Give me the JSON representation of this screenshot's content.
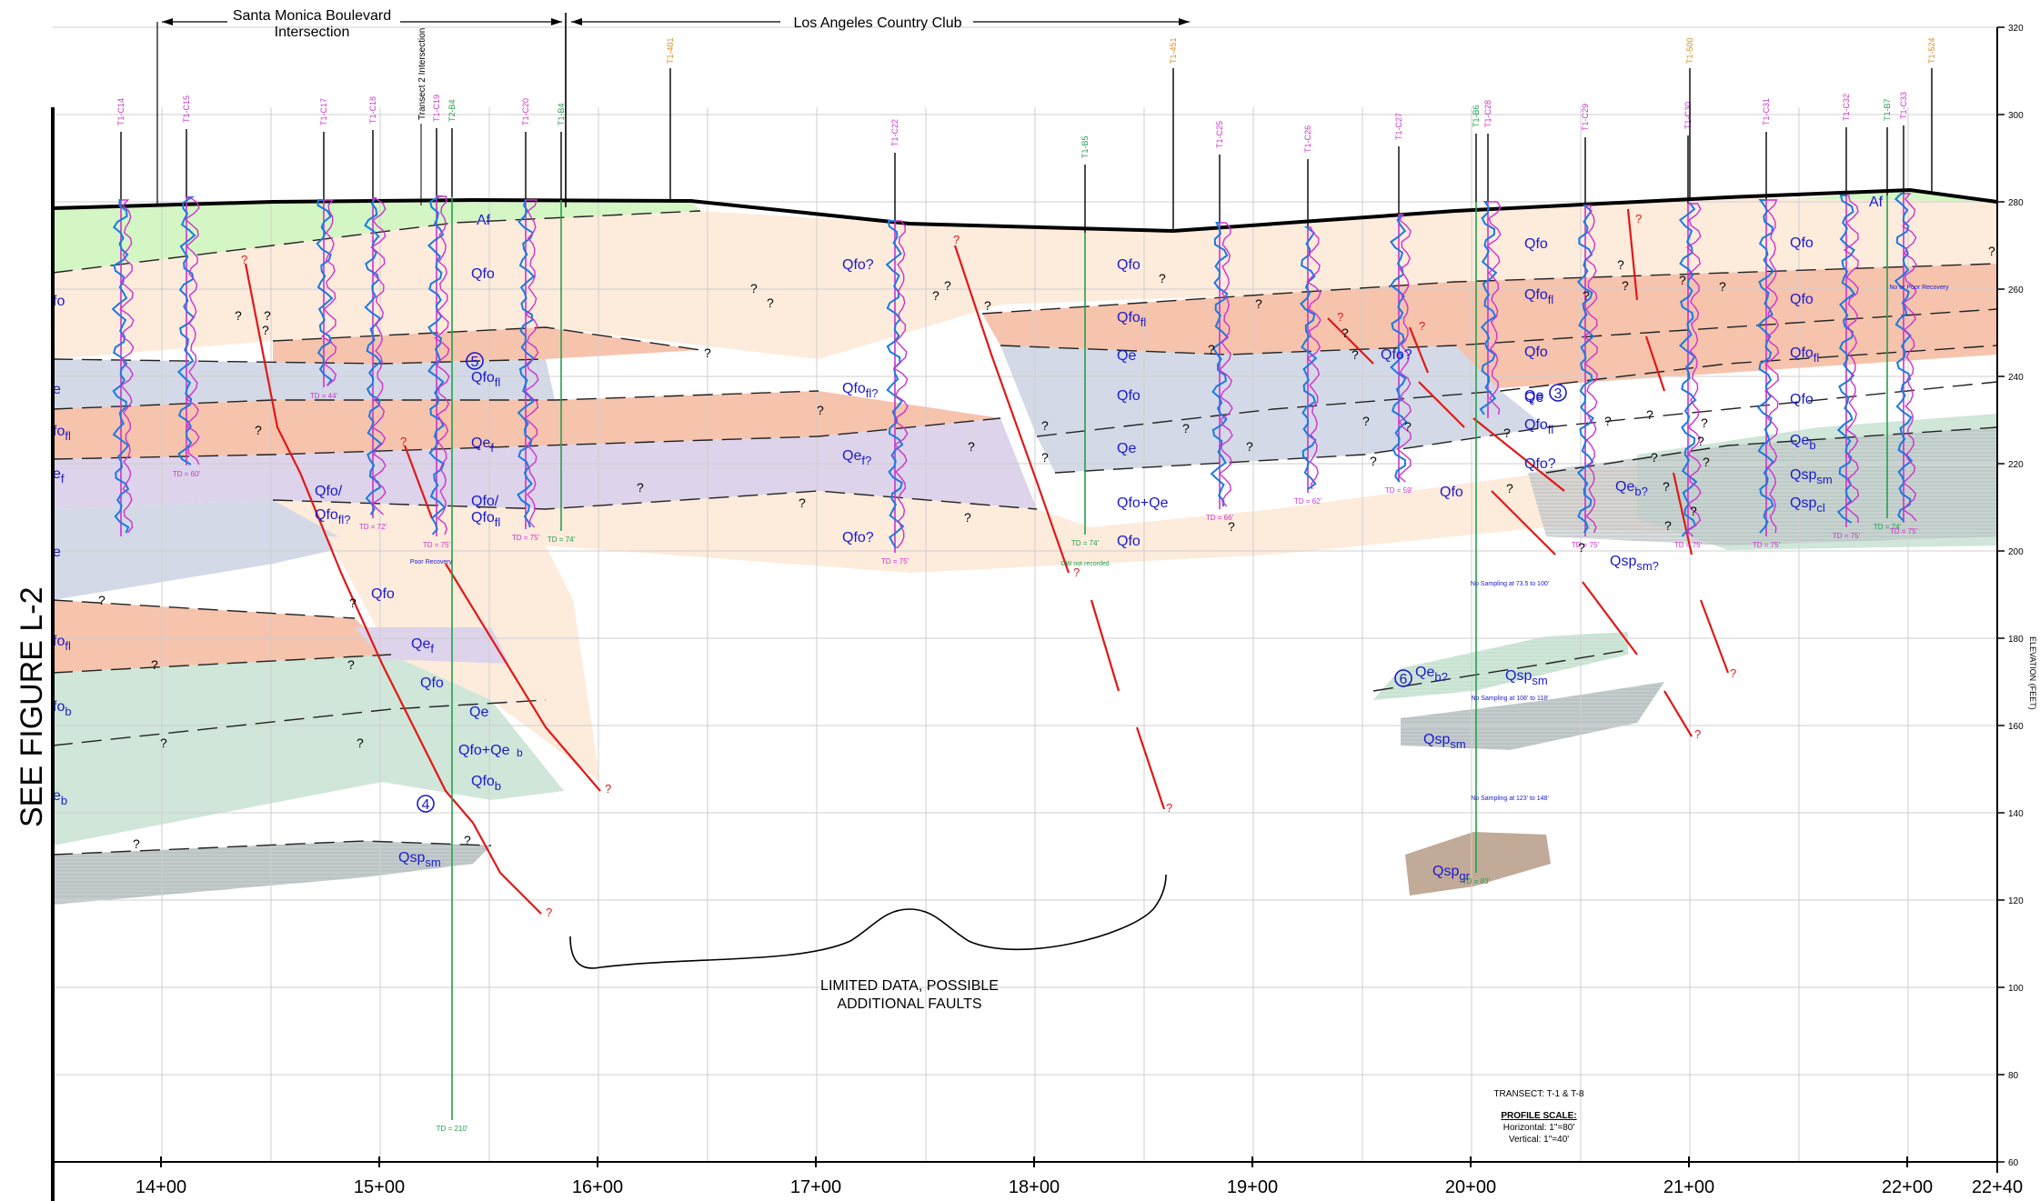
{
  "header": {
    "smb_title_line1": "Santa Monica Boulevard",
    "smb_title_line2": "Intersection",
    "lacc_title": "Los Angeles Country Club",
    "transect2_label": "Transect 2 Intersection"
  },
  "side_label": "SEE FIGURE L-2",
  "annotation": {
    "line1": "LIMITED DATA, POSSIBLE",
    "line2": "ADDITIONAL FAULTS"
  },
  "profile_info": {
    "transect": "TRANSECT: T-1 & T-8",
    "scale_title": "PROFILE SCALE:",
    "horizontal": "Horizontal: 1\"=80'",
    "vertical": "Vertical: 1\"=40'"
  },
  "colors": {
    "boring_cpt": "#cc33cc",
    "boring_b": "#22a04a",
    "reference": "#e08a1e",
    "unit_label": "#1a1acc",
    "fault": "#e01818",
    "Af": "#d4f5c4",
    "Qfo": "#fdebdc",
    "Qfo_fl": "#f6c3ad",
    "Qe": "#d3d9e6",
    "Qe_f": "#ddd3ea",
    "Qe_b": "#cfe6d8",
    "Qsp_sm": "#c4cbcd",
    "Qsp_gr": "#c2aa98"
  },
  "x_axis": {
    "stations": [
      "14+00",
      "15+00",
      "16+00",
      "17+00",
      "18+00",
      "19+00",
      "20+00",
      "21+00",
      "22+00",
      "22+40"
    ]
  },
  "y_axis": {
    "elevations": [
      "320",
      "300",
      "280",
      "260",
      "240",
      "220",
      "200",
      "180",
      "160",
      "140",
      "120",
      "100",
      "80",
      "60"
    ],
    "label": "ELEVATION (FEET)"
  },
  "borings": [
    {
      "label": "T1-C14",
      "type": "cpt",
      "td": ""
    },
    {
      "label": "T1-C15",
      "type": "cpt",
      "td": "TD = 60'"
    },
    {
      "label": "T1-C17",
      "type": "cpt",
      "td": "TD = 44'"
    },
    {
      "label": "T1-C18",
      "type": "cpt",
      "td": "TD = 72'"
    },
    {
      "label": "T1-C19",
      "type": "cpt",
      "td": "TD = 75'"
    },
    {
      "label": "T2-B4",
      "type": "b",
      "td": "TD = 210'"
    },
    {
      "label": "T1-C20",
      "type": "cpt",
      "td": "TD = 75'"
    },
    {
      "label": "T1-B4",
      "type": "b",
      "td": "TD = 74'"
    },
    {
      "label": "T1-C22",
      "type": "cpt",
      "td": "TD = 75'"
    },
    {
      "label": "T1-B5",
      "type": "b",
      "td": "TD = 74'"
    },
    {
      "label": "T1-C25",
      "type": "cpt",
      "td": "TD = 66'"
    },
    {
      "label": "T1-C26",
      "type": "cpt",
      "td": "TD = 62'"
    },
    {
      "label": "T1-C27",
      "type": "cpt",
      "td": "TD = 59'"
    },
    {
      "label": "T1-B6",
      "type": "b",
      "td": "TD = 83'"
    },
    {
      "label": "T1-C28",
      "type": "cpt",
      "td": ""
    },
    {
      "label": "T1-C29",
      "type": "cpt",
      "td": "TD = 75'"
    },
    {
      "label": "T1-C30",
      "type": "cpt",
      "td": "TD = 75'"
    },
    {
      "label": "T1-C31",
      "type": "cpt",
      "td": "TD = 75'"
    },
    {
      "label": "T1-C32",
      "type": "cpt",
      "td": "TD = 75'"
    },
    {
      "label": "T1-B7",
      "type": "b",
      "td": "TD = 74'"
    },
    {
      "label": "T1-C33",
      "type": "cpt",
      "td": "TD = 75'"
    }
  ],
  "reference_lines": [
    {
      "label": "T1-401"
    },
    {
      "label": "T1-451"
    },
    {
      "label": "T1-500"
    },
    {
      "label": "T1-524"
    }
  ],
  "units": {
    "Af": "Af",
    "Qfo": "Qfo",
    "Qfo_q": "Qfo?",
    "Qe": "Qe",
    "Qfo_plus_Qe": "Qfo+Qe",
    "Qfo_slash": "Qfo/",
    "Qsp": "Qsp",
    "Qe_base": "Qe",
    "Qfo_base": "Qfo",
    "sub_fl": "fl",
    "sub_f": "f",
    "sub_b": "b",
    "sub_sm": "sm",
    "sub_cl": "cl",
    "sub_gr": "gr",
    "q": "?",
    "fl_q": "fl?",
    "f_q": "f?",
    "b_q": "b?",
    "sm_q": "sm?"
  },
  "circled_numbers": [
    "3",
    "4",
    "5",
    "6"
  ],
  "notes": {
    "poor_recovery": "Poor Recovery",
    "no_sampling_1": "No Sampling at 73.5 to 100'",
    "no_sampling_2": "No Sampling at 108' to 118'",
    "no_sampling_3": "No Sampling at 123' to 148'",
    "gw_not_recorded": "GW not recorded",
    "no_or_poor_recovery": "No or Poor Recovery"
  }
}
